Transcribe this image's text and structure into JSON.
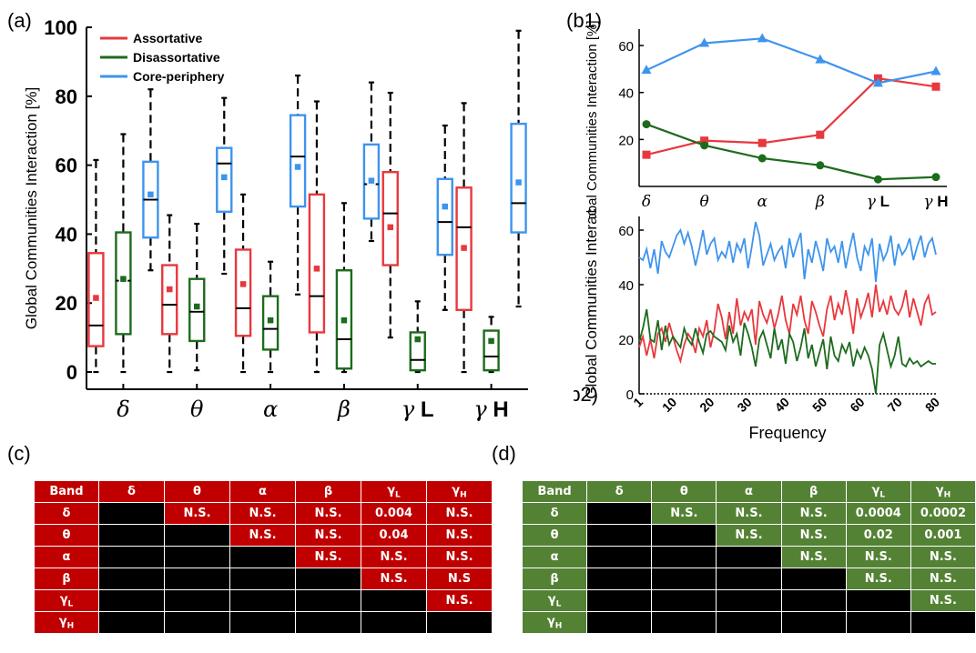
{
  "panels": {
    "a": "(a)",
    "b1": "(b1)",
    "b2": "(b2)",
    "c": "(c)",
    "d": "(d)"
  },
  "chart_data": [
    {
      "id": "a",
      "type": "box",
      "ylabel": "Global Communities Interaction [%]",
      "ylim": [
        -5,
        100
      ],
      "yticks": [
        "0",
        "20",
        "40",
        "60",
        "80",
        "100"
      ],
      "categories": [
        "δ",
        "θ",
        "α",
        "β",
        "γ L",
        "γ H"
      ],
      "legend_position": "top-left",
      "series": [
        {
          "name": "Assortative",
          "color": "#e8383d",
          "boxes": [
            {
              "min": 0,
              "q1": 7.5,
              "median": 13.5,
              "q3": 34.5,
              "max": 61.5,
              "mean": 21.5
            },
            {
              "min": 0,
              "q1": 11,
              "median": 19.5,
              "q3": 31,
              "max": 45.5,
              "mean": 24
            },
            {
              "min": 0,
              "q1": 10.5,
              "median": 18.5,
              "q3": 35.5,
              "max": 51.5,
              "mean": 25.5
            },
            {
              "min": 0,
              "q1": 11.5,
              "median": 22,
              "q3": 51.5,
              "max": 78.5,
              "mean": 30
            },
            {
              "min": 10,
              "q1": 31,
              "median": 46,
              "q3": 58,
              "max": 81,
              "mean": 42
            },
            {
              "min": 0,
              "q1": 18,
              "median": 42,
              "q3": 53.5,
              "max": 78,
              "mean": 36
            }
          ]
        },
        {
          "name": "Disassortative",
          "color": "#1d6b1d",
          "boxes": [
            {
              "min": 0,
              "q1": 11,
              "median": 26.5,
              "q3": 40.5,
              "max": 69,
              "mean": 27
            },
            {
              "min": 0.5,
              "q1": 9,
              "median": 17.5,
              "q3": 27,
              "max": 43,
              "mean": 19
            },
            {
              "min": 0,
              "q1": 6.5,
              "median": 12.5,
              "q3": 22,
              "max": 32,
              "mean": 15
            },
            {
              "min": 0,
              "q1": 1,
              "median": 9.5,
              "q3": 29.5,
              "max": 49,
              "mean": 15
            },
            {
              "min": 0,
              "q1": 0.5,
              "median": 3.5,
              "q3": 11.5,
              "max": 20.5,
              "mean": 9.5
            },
            {
              "min": 0,
              "q1": 0.5,
              "median": 4.5,
              "q3": 12,
              "max": 16,
              "mean": 9
            }
          ]
        },
        {
          "name": "Core-periphery",
          "color": "#3d94ee",
          "boxes": [
            {
              "min": 29.5,
              "q1": 39,
              "median": 50,
              "q3": 61,
              "max": 82,
              "mean": 51.5
            },
            {
              "min": 28.5,
              "q1": 46.5,
              "median": 60.5,
              "q3": 65,
              "max": 79.5,
              "mean": 56.5
            },
            {
              "min": 22.5,
              "q1": 48,
              "median": 62.5,
              "q3": 74.5,
              "max": 86,
              "mean": 59.5
            },
            {
              "min": 38,
              "q1": 44.5,
              "median": 54.5,
              "q3": 66,
              "max": 84,
              "mean": 55.5
            },
            {
              "min": 18,
              "q1": 34,
              "median": 43.5,
              "q3": 56,
              "max": 71.5,
              "mean": 48
            },
            {
              "min": 19,
              "q1": 40.5,
              "median": 49,
              "q3": 72,
              "max": 99,
              "mean": 55
            }
          ]
        }
      ]
    },
    {
      "id": "b1",
      "type": "line",
      "ylabel": "Global Communities Interaction [%]",
      "ylim": [
        0,
        67
      ],
      "yticks": [
        "20",
        "40",
        "60"
      ],
      "categories": [
        "δ",
        "θ",
        "α",
        "β",
        "γ L",
        "γ H"
      ],
      "series": [
        {
          "name": "Assortative",
          "color": "#e8383d",
          "marker": "square",
          "values": [
            13.5,
            19.5,
            18.5,
            22,
            46,
            42.5
          ]
        },
        {
          "name": "Disassortative",
          "color": "#1d6b1d",
          "marker": "circle",
          "values": [
            26.5,
            17.5,
            12,
            9,
            3,
            4
          ]
        },
        {
          "name": "Core-periphery",
          "color": "#3d94ee",
          "marker": "triangle",
          "values": [
            49.5,
            61,
            63,
            54,
            44,
            49
          ]
        }
      ]
    },
    {
      "id": "b2",
      "type": "line",
      "xlabel": "Frequency",
      "xlim": [
        1,
        80
      ],
      "ylim": [
        0,
        65
      ],
      "xticks": [
        "1",
        "10",
        "20",
        "30",
        "40",
        "50",
        "60",
        "70",
        "80"
      ],
      "yticks": [
        "0",
        "20",
        "40",
        "60"
      ],
      "x": [
        1,
        2,
        3,
        4,
        5,
        6,
        7,
        8,
        9,
        10,
        11,
        12,
        13,
        14,
        15,
        16,
        17,
        18,
        19,
        20,
        21,
        22,
        23,
        24,
        25,
        26,
        27,
        28,
        29,
        30,
        31,
        32,
        33,
        34,
        35,
        36,
        37,
        38,
        39,
        40,
        41,
        42,
        43,
        44,
        45,
        46,
        47,
        48,
        49,
        50,
        51,
        52,
        53,
        54,
        55,
        56,
        57,
        58,
        59,
        60,
        61,
        62,
        63,
        64,
        65,
        66,
        67,
        68,
        69,
        70,
        71,
        72,
        73,
        74,
        75,
        76,
        77,
        78,
        79,
        80
      ],
      "series": [
        {
          "name": "Assortative",
          "color": "#e8383d",
          "values": [
            17,
            21,
            14,
            20,
            13,
            22,
            24,
            19,
            26,
            21,
            16,
            12,
            18,
            22,
            20,
            15,
            24,
            21,
            27,
            17,
            23,
            33,
            28,
            20,
            30,
            22,
            35,
            25,
            30,
            27,
            31,
            18,
            34,
            29,
            26,
            31,
            24,
            29,
            36,
            27,
            22,
            33,
            29,
            36,
            27,
            22,
            34,
            30,
            25,
            21,
            31,
            36,
            27,
            33,
            29,
            38,
            31,
            22,
            35,
            28,
            32,
            37,
            28,
            40,
            30,
            34,
            29,
            36,
            31,
            29,
            32,
            38,
            28,
            35,
            30,
            25,
            33,
            36,
            29,
            30
          ]
        },
        {
          "name": "Disassortative",
          "color": "#1d6b1d",
          "values": [
            19,
            24,
            31,
            20,
            19,
            27,
            16,
            25,
            18,
            21,
            19,
            17,
            24,
            20,
            18,
            24,
            19,
            15,
            22,
            23,
            21,
            20,
            19,
            16,
            25,
            19,
            22,
            14,
            26,
            22,
            17,
            10,
            20,
            23,
            18,
            13,
            24,
            16,
            20,
            11,
            22,
            19,
            12,
            17,
            24,
            13,
            18,
            10,
            15,
            20,
            9,
            21,
            14,
            12,
            18,
            15,
            19,
            10,
            16,
            13,
            17,
            14,
            9,
            0,
            18,
            22,
            16,
            10,
            14,
            21,
            11,
            10,
            13,
            11,
            12,
            10,
            11,
            12,
            11,
            11
          ]
        },
        {
          "name": "Core-periphery",
          "color": "#3d94ee",
          "values": [
            50,
            49,
            53,
            46,
            53,
            44,
            56,
            52,
            50,
            54,
            58,
            60,
            55,
            59,
            54,
            47,
            53,
            60,
            51,
            55,
            57,
            49,
            52,
            50,
            56,
            48,
            55,
            52,
            57,
            46,
            54,
            63,
            58,
            47,
            51,
            55,
            49,
            52,
            54,
            46,
            57,
            50,
            55,
            59,
            42,
            53,
            48,
            56,
            51,
            45,
            57,
            52,
            54,
            48,
            56,
            46,
            53,
            59,
            50,
            45,
            54,
            51,
            57,
            41,
            55,
            49,
            52,
            58,
            47,
            55,
            51,
            53,
            57,
            49,
            54,
            58,
            50,
            55,
            57,
            51
          ]
        }
      ]
    }
  ],
  "table_c": {
    "header": [
      "Band",
      "δ",
      "θ",
      "α",
      "β",
      "γL",
      "γH"
    ],
    "rows": [
      {
        "label": "δ",
        "cells": [
          "",
          "N.S.",
          "N.S.",
          "N.S.",
          "0.004",
          "N.S."
        ]
      },
      {
        "label": "θ",
        "cells": [
          "",
          "",
          "N.S.",
          "N.S.",
          "0.04",
          "N.S."
        ]
      },
      {
        "label": "α",
        "cells": [
          "",
          "",
          "",
          "N.S.",
          "N.S.",
          "N.S."
        ]
      },
      {
        "label": "β",
        "cells": [
          "",
          "",
          "",
          "",
          "N.S.",
          "N.S"
        ]
      },
      {
        "label": "γL",
        "cells": [
          "",
          "",
          "",
          "",
          "",
          "N.S."
        ]
      },
      {
        "label": "γH",
        "cells": [
          "",
          "",
          "",
          "",
          "",
          ""
        ]
      }
    ]
  },
  "table_d": {
    "header": [
      "Band",
      "δ",
      "θ",
      "α",
      "β",
      "γL",
      "γH"
    ],
    "rows": [
      {
        "label": "δ",
        "cells": [
          "",
          "N.S.",
          "N.S.",
          "N.S.",
          "0.0004",
          "0.0002"
        ]
      },
      {
        "label": "θ",
        "cells": [
          "",
          "",
          "N.S.",
          "N.S.",
          "0.02",
          "0.001"
        ]
      },
      {
        "label": "α",
        "cells": [
          "",
          "",
          "",
          "N.S.",
          "N.S.",
          "N.S."
        ]
      },
      {
        "label": "β",
        "cells": [
          "",
          "",
          "",
          "",
          "N.S.",
          "N.S."
        ]
      },
      {
        "label": "γL",
        "cells": [
          "",
          "",
          "",
          "",
          "",
          "N.S."
        ]
      },
      {
        "label": "γH",
        "cells": [
          "",
          "",
          "",
          "",
          "",
          ""
        ]
      }
    ]
  }
}
